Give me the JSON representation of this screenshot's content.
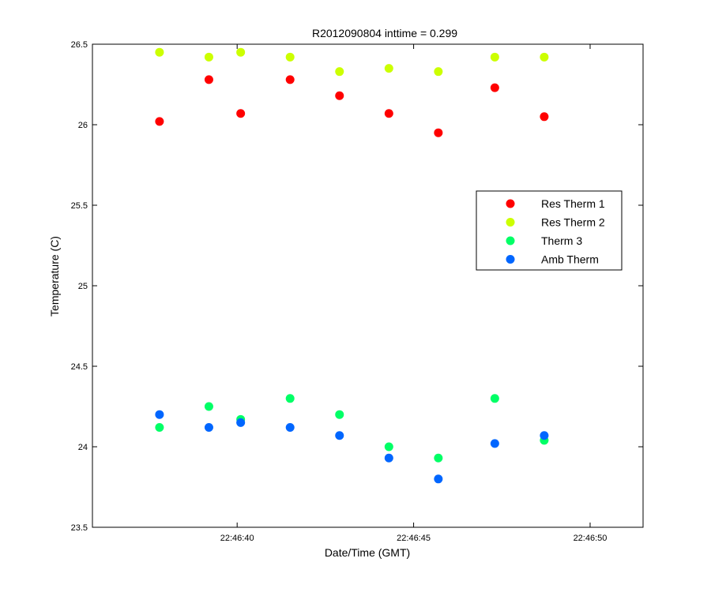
{
  "chart_data": {
    "type": "scatter",
    "title": "R2012090804 inttime = 0.299",
    "xlabel": "Date/Time (GMT)",
    "ylabel": "Temperature (C)",
    "x_unit": "time of day (GMT)",
    "xlim": [
      "22:46:35.9",
      "22:46:51.5"
    ],
    "ylim": [
      23.5,
      26.5
    ],
    "xticks": [
      "22:46:40",
      "22:46:45",
      "22:46:50"
    ],
    "yticks": [
      "23.5",
      "24",
      "24.5",
      "25",
      "25.5",
      "26",
      "26.5"
    ],
    "grid": false,
    "legend_position": "right",
    "x": [
      "22:46:37.8",
      "22:46:39.2",
      "22:46:40.1",
      "22:46:41.5",
      "22:46:42.9",
      "22:46:44.3",
      "22:46:45.7",
      "22:46:47.3",
      "22:46:48.7"
    ],
    "series": [
      {
        "name": "Res Therm 1",
        "color": "#ff0000",
        "marker": "circle",
        "y": [
          26.02,
          26.28,
          26.07,
          26.28,
          26.18,
          26.07,
          25.95,
          26.23,
          26.05
        ]
      },
      {
        "name": "Res Therm 2",
        "color": "#ccff00",
        "marker": "circle",
        "y": [
          26.45,
          26.42,
          26.45,
          26.42,
          26.33,
          26.35,
          26.33,
          26.42,
          26.42
        ]
      },
      {
        "name": "Therm 3",
        "color": "#00ff66",
        "marker": "circle",
        "y": [
          24.12,
          24.25,
          24.17,
          24.3,
          24.2,
          24.0,
          23.93,
          24.3,
          24.04
        ]
      },
      {
        "name": "Amb Therm",
        "color": "#0066ff",
        "marker": "circle",
        "y": [
          24.2,
          24.12,
          24.15,
          24.12,
          24.07,
          23.93,
          23.8,
          24.02,
          24.07
        ]
      }
    ]
  }
}
